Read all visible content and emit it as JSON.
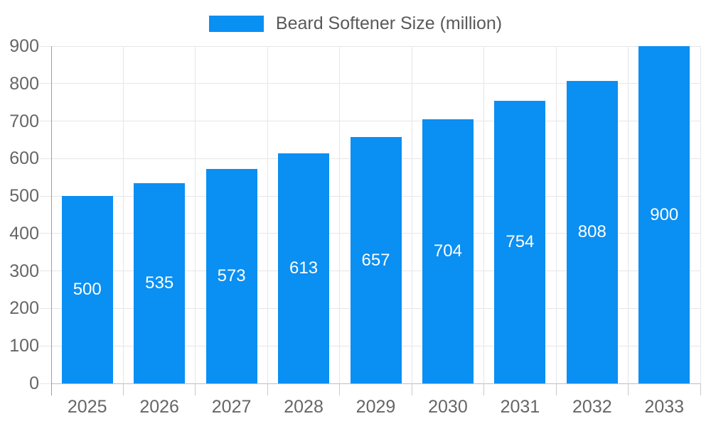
{
  "chart_data": {
    "type": "bar",
    "title": "Beard Softener Size (million)",
    "categories": [
      "2025",
      "2026",
      "2027",
      "2028",
      "2029",
      "2030",
      "2031",
      "2032",
      "2033"
    ],
    "values": [
      500,
      535,
      573,
      613,
      657,
      704,
      754,
      808,
      900
    ],
    "series": [
      {
        "name": "Beard Softener Size (million)",
        "values": [
          500,
          535,
          573,
          613,
          657,
          704,
          754,
          808,
          900
        ]
      }
    ],
    "xlabel": "",
    "ylabel": "",
    "ylim": [
      0,
      900
    ],
    "ytick_step": 100,
    "yticks": [
      0,
      100,
      200,
      300,
      400,
      500,
      600,
      700,
      800,
      900
    ],
    "grid": true,
    "legend_position": "top-center",
    "value_labels": "inside-center",
    "colors": {
      "bar": "#0a8ff2",
      "value_label": "#ffffff",
      "tick_label": "#666666",
      "legend_text": "#595959",
      "gridline": "#e6e6e6",
      "zero_line": "#bdbdbd",
      "tick_mark": "#c9c9c9",
      "axis_line": "#9e9e9e"
    }
  }
}
